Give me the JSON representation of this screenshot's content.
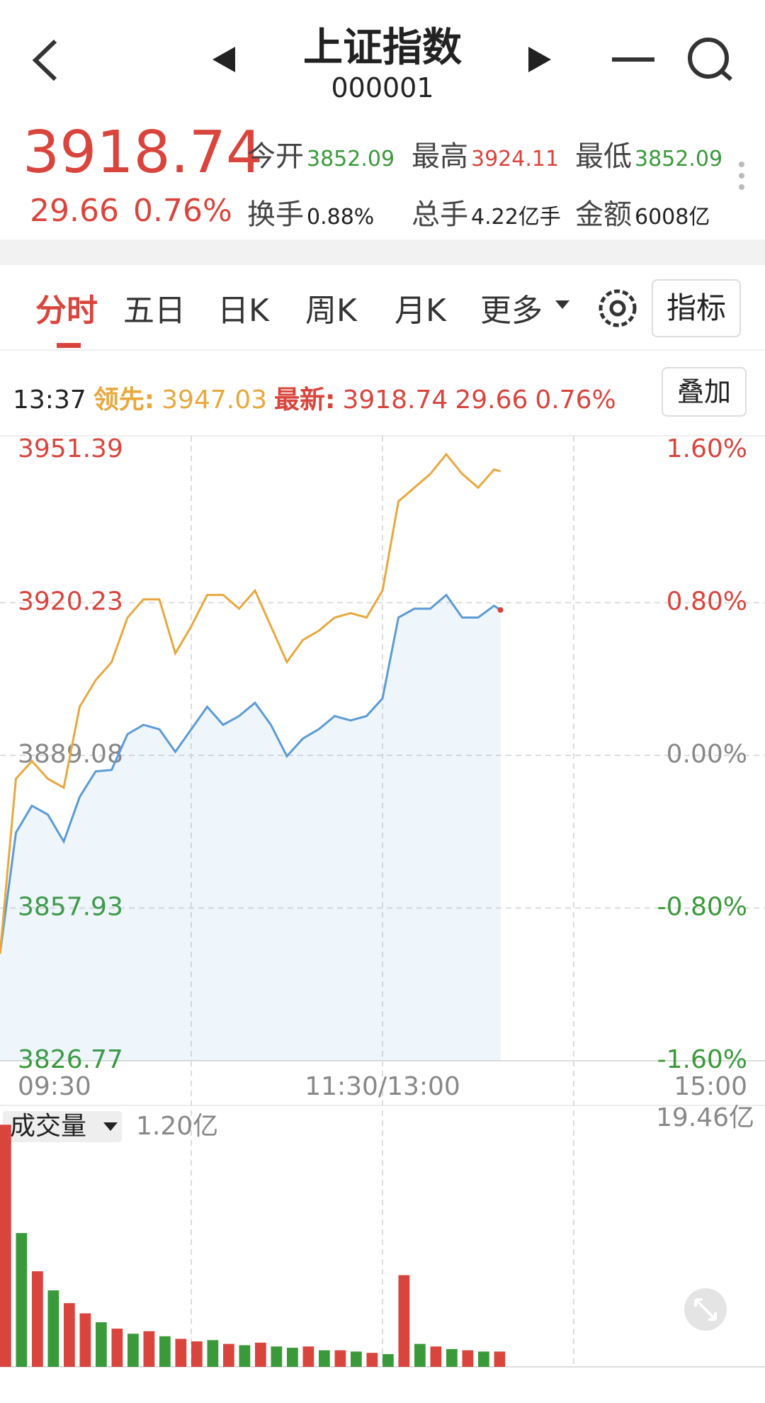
{
  "header": {
    "title": "上证指数",
    "code": "000001"
  },
  "quote": {
    "price": "3918.74",
    "change": "29.66",
    "change_pct": "0.76%",
    "stats": [
      {
        "label": "今开",
        "value": "3852.09",
        "color": "#3a9a3a"
      },
      {
        "label": "最高",
        "value": "3924.11",
        "color": "#d9453d"
      },
      {
        "label": "最低",
        "value": "3852.09",
        "color": "#3a9a3a"
      },
      {
        "label": "换手",
        "value": "0.88%",
        "color": "#222222"
      },
      {
        "label": "总手",
        "value": "4.22亿手",
        "color": "#222222"
      },
      {
        "label": "金额",
        "value": "6008亿",
        "color": "#222222"
      }
    ]
  },
  "tabs": [
    "分时",
    "五日",
    "日K",
    "周K",
    "月K",
    "更多"
  ],
  "indicator_button": "指标",
  "info": {
    "time": "13:37",
    "lead_label": "领先:",
    "lead_value": "3947.03",
    "latest_label": "最新:",
    "latest_value": "3918.74",
    "latest_change": "29.66",
    "latest_pct": "0.76%",
    "overlay_button": "叠加"
  },
  "chart_data": [
    {
      "type": "line",
      "x": [
        0,
        5,
        10,
        15,
        20,
        25,
        30,
        35,
        40,
        45,
        50,
        55,
        60,
        65,
        70,
        75,
        80,
        85,
        90,
        95,
        100,
        105,
        110,
        115,
        120,
        125,
        130,
        135,
        140,
        145,
        150,
        155,
        157
      ],
      "xlim": [
        0,
        240
      ],
      "xticks": [
        {
          "value": 0,
          "label": "09:30"
        },
        {
          "value": 120,
          "label": "11:30/13:00"
        },
        {
          "value": 240,
          "label": "15:00"
        }
      ],
      "ylim": [
        3826.77,
        3951.39
      ],
      "yticks": [
        3826.77,
        3857.93,
        3889.08,
        3920.23,
        3951.39
      ],
      "ytick_colors": [
        "#3a9a3a",
        "#3a9a3a",
        "#888888",
        "#d9453d",
        "#d9453d"
      ],
      "y2lim": [
        -1.6,
        1.6
      ],
      "y2ticks": [
        {
          "value": -1.6,
          "label": "-1.60%"
        },
        {
          "value": -0.8,
          "label": "-0.80%"
        },
        {
          "value": 0,
          "label": "0.00%"
        },
        {
          "value": 0.8,
          "label": "0.80%"
        },
        {
          "value": 1.6,
          "label": "1.60%"
        }
      ],
      "grid": true,
      "series": [
        {
          "name": "最新",
          "color": "#5b9bd5",
          "area": true,
          "values": [
            3848.6,
            3873.3,
            3878.8,
            3877.0,
            3871.5,
            3880.6,
            3885.8,
            3886.1,
            3893.4,
            3895.3,
            3894.4,
            3889.8,
            3894.4,
            3899.0,
            3895.3,
            3897.1,
            3899.8,
            3895.3,
            3888.9,
            3892.5,
            3894.4,
            3897.1,
            3896.2,
            3897.1,
            3900.7,
            3917.2,
            3919.0,
            3919.0,
            3921.8,
            3917.2,
            3917.2,
            3919.6,
            3918.74
          ]
        },
        {
          "name": "领先",
          "color": "#e8a83e",
          "area": false,
          "values": [
            3848.6,
            3884.3,
            3887.9,
            3884.3,
            3882.5,
            3899.0,
            3904.4,
            3908.1,
            3917.2,
            3920.9,
            3920.9,
            3909.9,
            3915.4,
            3921.8,
            3921.8,
            3919.0,
            3922.7,
            3915.4,
            3908.1,
            3912.6,
            3914.5,
            3917.2,
            3918.1,
            3917.2,
            3922.7,
            3940.9,
            3943.7,
            3946.5,
            3950.5,
            3946.5,
            3943.7,
            3947.4,
            3947.03
          ]
        }
      ]
    },
    {
      "type": "bar",
      "label": "成交量",
      "current_label": "1.20亿",
      "x": [
        0,
        5,
        10,
        15,
        20,
        25,
        30,
        35,
        40,
        45,
        50,
        55,
        60,
        65,
        70,
        75,
        80,
        85,
        90,
        95,
        100,
        105,
        110,
        115,
        120,
        125,
        130,
        135,
        140,
        145,
        150,
        155
      ],
      "xlim": [
        0,
        240
      ],
      "ylim": [
        0,
        19.46
      ],
      "yticks": [
        {
          "value": 19.46,
          "label": "19.46亿"
        }
      ],
      "values": [
        19.0,
        10.5,
        7.5,
        6.0,
        5.0,
        4.2,
        3.5,
        3.0,
        2.6,
        2.8,
        2.4,
        2.2,
        2.0,
        2.1,
        1.8,
        1.7,
        1.9,
        1.6,
        1.5,
        1.6,
        1.3,
        1.3,
        1.2,
        1.1,
        1.0,
        7.2,
        1.8,
        1.6,
        1.4,
        1.3,
        1.2,
        1.2
      ],
      "colors": [
        "#d9453d",
        "#3a9a3a",
        "#d9453d",
        "#3a9a3a",
        "#d9453d",
        "#d9453d",
        "#3a9a3a",
        "#d9453d",
        "#3a9a3a",
        "#d9453d",
        "#3a9a3a",
        "#d9453d",
        "#d9453d",
        "#3a9a3a",
        "#d9453d",
        "#3a9a3a",
        "#d9453d",
        "#3a9a3a",
        "#3a9a3a",
        "#d9453d",
        "#3a9a3a",
        "#d9453d",
        "#3a9a3a",
        "#d9453d",
        "#3a9a3a",
        "#d9453d",
        "#3a9a3a",
        "#d9453d",
        "#3a9a3a",
        "#d9453d",
        "#3a9a3a",
        "#d9453d"
      ]
    }
  ]
}
